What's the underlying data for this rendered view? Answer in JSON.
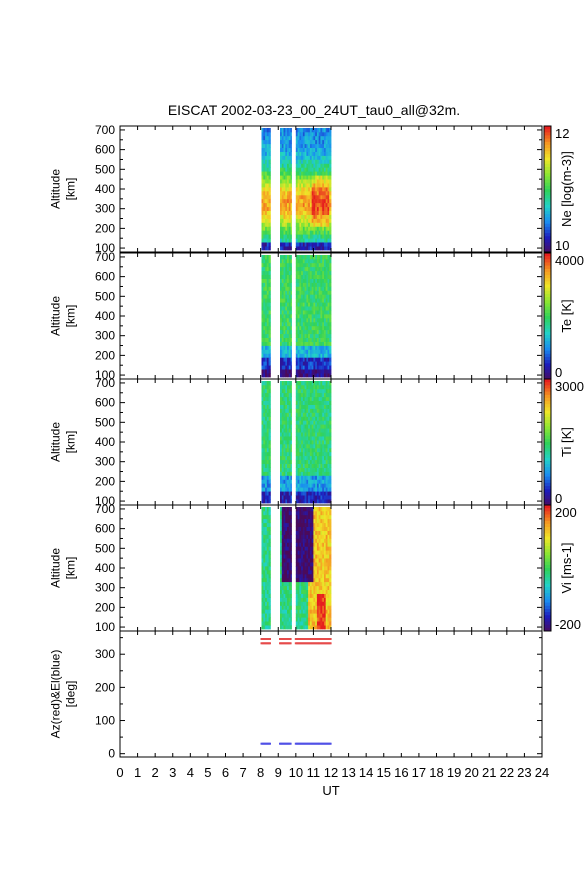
{
  "title": "EISCAT 2002-03-23_00_24UT_tau0_all@32m.",
  "colors": {
    "rainbow": [
      "#4b0a5a",
      "#1c1cbc",
      "#1a8cf0",
      "#22d2c8",
      "#30d25a",
      "#8ce632",
      "#f0e628",
      "#f59622",
      "#e61e1e"
    ],
    "az_marker": "#e64b4b",
    "el_marker": "#5050e6"
  },
  "chart_data": [
    {
      "type": "heatmap",
      "xlabel": "UT",
      "xlim": [
        0,
        24
      ],
      "ylabel": "Altitude\n[km]",
      "ylim": [
        80,
        720
      ],
      "yticks": [
        100,
        200,
        300,
        400,
        500,
        600,
        700
      ],
      "colorbar": {
        "label": "Ne [log(m-3)]",
        "range": [
          10,
          12
        ],
        "tick_labels": [
          "12",
          "10"
        ]
      },
      "data_segments": [
        [
          8.05,
          8.55
        ],
        [
          9.1,
          9.75
        ],
        [
          10.0,
          12.0
        ]
      ]
    },
    {
      "type": "heatmap",
      "xlabel": "UT",
      "xlim": [
        0,
        24
      ],
      "ylabel": "Altitude\n[km]",
      "ylim": [
        80,
        720
      ],
      "yticks": [
        100,
        200,
        300,
        400,
        500,
        600,
        700
      ],
      "colorbar": {
        "label": "Te [K]",
        "range": [
          0,
          4000
        ],
        "tick_labels": [
          "4000",
          "0"
        ]
      },
      "data_segments": [
        [
          8.05,
          8.55
        ],
        [
          9.1,
          9.75
        ],
        [
          10.0,
          12.0
        ]
      ]
    },
    {
      "type": "heatmap",
      "xlabel": "UT",
      "xlim": [
        0,
        24
      ],
      "ylabel": "Altitude\n[km]",
      "ylim": [
        80,
        720
      ],
      "yticks": [
        100,
        200,
        300,
        400,
        500,
        600,
        700
      ],
      "colorbar": {
        "label": "Ti [K]",
        "range": [
          0,
          3000
        ],
        "tick_labels": [
          "3000",
          "0"
        ]
      },
      "data_segments": [
        [
          8.05,
          8.55
        ],
        [
          9.1,
          9.75
        ],
        [
          10.0,
          12.0
        ]
      ]
    },
    {
      "type": "heatmap",
      "xlabel": "UT",
      "xlim": [
        0,
        24
      ],
      "ylabel": "Altitude\n[km]",
      "ylim": [
        80,
        720
      ],
      "yticks": [
        100,
        200,
        300,
        400,
        500,
        600,
        700
      ],
      "colorbar": {
        "label": "Vi [ms-1]",
        "range": [
          -200,
          200
        ],
        "tick_labels": [
          "200",
          "-200"
        ]
      },
      "data_segments": [
        [
          8.05,
          8.55
        ],
        [
          9.1,
          9.75
        ],
        [
          10.0,
          12.0
        ]
      ]
    },
    {
      "type": "scatter",
      "xlabel": "UT",
      "xlim": [
        0,
        24
      ],
      "ylabel": "Az(red)&El(blue)\n[deg]",
      "ylim": [
        -10,
        370
      ],
      "yticks": [
        0,
        100,
        200,
        300
      ],
      "xticks": [
        0,
        1,
        2,
        3,
        4,
        5,
        6,
        7,
        8,
        9,
        10,
        11,
        12,
        13,
        14,
        15,
        16,
        17,
        18,
        19,
        20,
        21,
        22,
        23,
        24
      ],
      "series": [
        {
          "name": "Az",
          "color": "red",
          "segments": [
            [
              8.05,
              8.55
            ],
            [
              9.1,
              9.75
            ],
            [
              10.0,
              12.0
            ]
          ],
          "values": [
            346,
            333
          ]
        },
        {
          "name": "El",
          "color": "blue",
          "segments": [
            [
              8.05,
              8.55
            ],
            [
              9.1,
              9.75
            ],
            [
              10.0,
              12.0
            ]
          ],
          "values": [
            30
          ]
        }
      ]
    }
  ]
}
